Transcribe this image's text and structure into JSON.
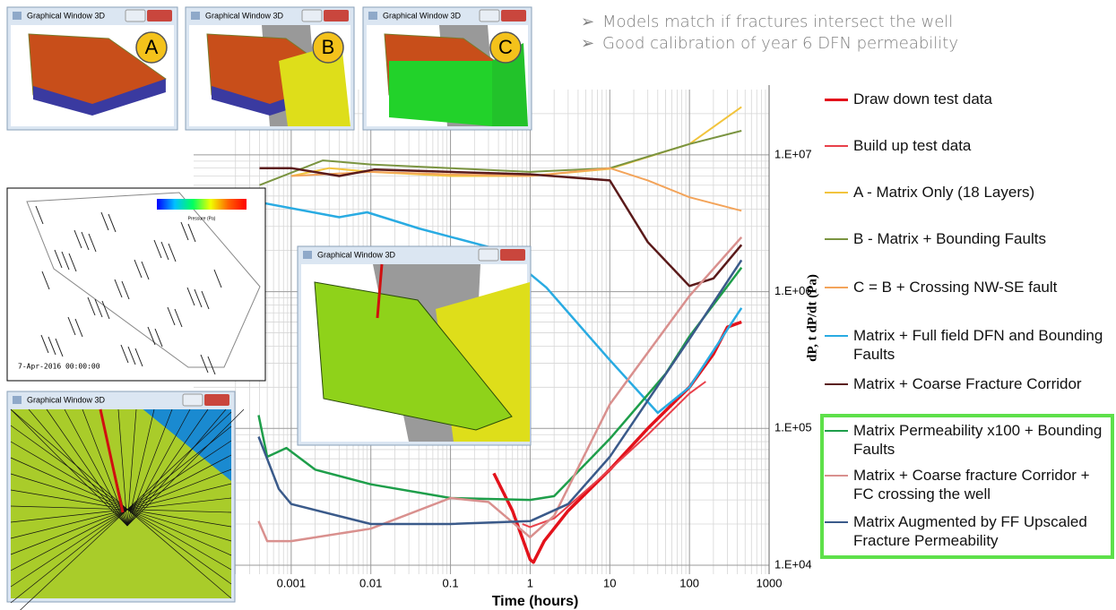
{
  "slide": {
    "bullets": [
      "Models  match if fractures intersect the well",
      "Good calibration of year 6 DFN permeability"
    ],
    "windows": [
      {
        "title": "Graphical Window 3D",
        "label": "A"
      },
      {
        "title": "Graphical Window 3D",
        "label": "B"
      },
      {
        "title": "Graphical Window 3D",
        "label": "C"
      },
      {
        "title": "Graphical Window 3D"
      },
      {
        "title": "Graphical Window 3D"
      }
    ],
    "fracture_view": {
      "timestamp": "7-Apr-2016 00:00:00",
      "colorbar_title": "Pressure (Pa)"
    }
  },
  "chart_data": {
    "type": "line",
    "x_label": "Time (hours)",
    "y_label": "dP, t dP/dt (Pa)",
    "x_log": true,
    "y_log": true,
    "grid": true,
    "legend": "right",
    "xlim": [
      0.0001,
      1000
    ],
    "xticks": [
      0.001,
      0.01,
      0.1,
      1,
      10,
      100,
      1000
    ],
    "ylim": [
      10000,
      30000000
    ],
    "yticks": [
      {
        "value": 10000,
        "label": "1.E+04"
      },
      {
        "value": 100000,
        "label": "1.E+05"
      },
      {
        "value": 1000000,
        "label": "1.E+06"
      },
      {
        "value": 10000000,
        "label": "1.E+07"
      }
    ],
    "highlighted_series": [
      7,
      8,
      9
    ],
    "highlight_color": "#5ee04a",
    "series": [
      {
        "name": "Draw down test data",
        "color": "#e3121b",
        "width": 3.5,
        "x": [
          0.35,
          0.6,
          1,
          1.1,
          1.5,
          3,
          10,
          30,
          100,
          200,
          300,
          450
        ],
        "values": [
          47000,
          25000,
          11000,
          10500,
          15000,
          25000,
          50000,
          100000,
          200000,
          350000,
          550000,
          600000
        ]
      },
      {
        "name": "Build up test data",
        "color": "#e8404a",
        "width": 2,
        "x": [
          0.8,
          1,
          2,
          5,
          10,
          30,
          100,
          160
        ],
        "values": [
          20000,
          19000,
          22000,
          35000,
          50000,
          90000,
          180000,
          220000
        ]
      },
      {
        "name": "A - Matrix Only (18 Layers)",
        "color": "#f2c43d",
        "width": 2,
        "x": [
          0.001,
          0.003,
          0.01,
          0.1,
          1,
          10,
          100,
          200,
          450
        ],
        "values": [
          7000000,
          8000000,
          7500000,
          7000000,
          7000000,
          7900000,
          12000000,
          16000000,
          22400000
        ]
      },
      {
        "name": "B - Matrix + Bounding Faults",
        "color": "#7a9440",
        "width": 2,
        "x": [
          0.0004,
          0.0025,
          0.01,
          0.1,
          1,
          10,
          100,
          450
        ],
        "values": [
          6000000,
          9100000,
          8500000,
          8000000,
          7500000,
          8000000,
          12000000,
          15000000
        ]
      },
      {
        "name": "C = B + Crossing NW-SE fault",
        "color": "#f3a45a",
        "width": 2,
        "x": [
          0.001,
          0.01,
          0.1,
          1,
          10,
          30,
          100,
          450
        ],
        "values": [
          7000000,
          7500000,
          7200000,
          7000000,
          8000000,
          6500000,
          4900000,
          3900000
        ]
      },
      {
        "name": "Matrix + Full field DFN and Bounding Faults",
        "color": "#29abe2",
        "width": 2.5,
        "x": [
          0.0004,
          0.004,
          0.009,
          0.04,
          0.44,
          1.6,
          9.8,
          40,
          100,
          450
        ],
        "values": [
          4500000,
          3500000,
          3800000,
          2900000,
          2000000,
          1070000,
          320000,
          130000,
          200000,
          760000
        ]
      },
      {
        "name": "Matrix + Coarse Fracture Corridor",
        "color": "#5a1a1a",
        "width": 2.5,
        "x": [
          0.0004,
          0.001,
          0.004,
          0.011,
          0.1,
          1,
          10,
          30,
          100,
          200,
          450
        ],
        "values": [
          8000000,
          8000000,
          7000000,
          7800000,
          7500000,
          7200000,
          6500000,
          2300000,
          1100000,
          1250000,
          2200000
        ]
      },
      {
        "name": "Matrix Permeability x100 + Bounding Faults",
        "color": "#1e9e4a",
        "width": 2.5,
        "x": [
          0.00039,
          0.0005,
          0.00087,
          0.002,
          0.01,
          0.1,
          1,
          2,
          10,
          50,
          100,
          450
        ],
        "values": [
          125000,
          62000,
          72000,
          50000,
          39000,
          31000,
          30000,
          32000,
          84000,
          250000,
          470000,
          1500000
        ]
      },
      {
        "name": "Matrix + Coarse fracture Corridor + FC crossing the well",
        "color": "#d9908e",
        "width": 2.5,
        "x": [
          0.00039,
          0.0005,
          0.001,
          0.01,
          0.1,
          0.3,
          1,
          2,
          10,
          100,
          450
        ],
        "values": [
          21000,
          15000,
          15000,
          18500,
          31000,
          29000,
          16000,
          23000,
          150000,
          930000,
          2500000
        ]
      },
      {
        "name": "Matrix Augmented by FF Upscaled Fracture Permeability",
        "color": "#3a5a8a",
        "width": 2.5,
        "x": [
          0.00039,
          0.0007,
          0.001,
          0.01,
          0.1,
          1,
          3,
          10,
          100,
          450
        ],
        "values": [
          87000,
          36000,
          28000,
          20000,
          20000,
          21000,
          28000,
          62000,
          450000,
          1700000
        ]
      }
    ]
  }
}
